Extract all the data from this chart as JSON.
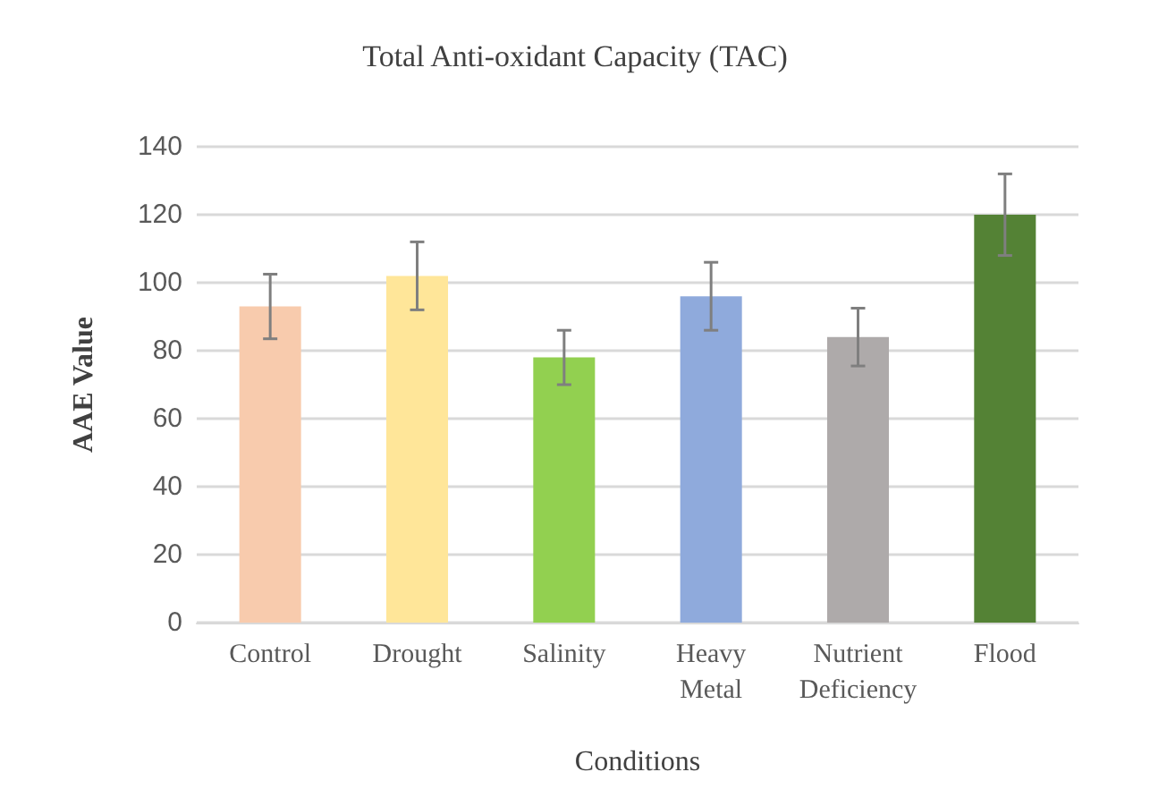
{
  "chart_data": {
    "type": "bar",
    "title": "Total Anti-oxidant Capacity (TAC)",
    "xlabel": "Conditions",
    "ylabel": "AAE Value",
    "categories": [
      "Control",
      "Drought",
      "Salinity",
      "Heavy Metal",
      "Nutrient Deficiency",
      "Flood"
    ],
    "values": [
      93,
      102,
      78,
      96,
      84,
      120
    ],
    "colors": [
      "#f8cbad",
      "#ffe699",
      "#92d050",
      "#8faadc",
      "#aeaaaa",
      "#548235"
    ],
    "errors": [
      9.5,
      10,
      8,
      10,
      8.5,
      12
    ],
    "ylim": [
      0,
      140
    ],
    "yticks": [
      0,
      20,
      40,
      60,
      80,
      100,
      120,
      140
    ],
    "grid": "y"
  }
}
